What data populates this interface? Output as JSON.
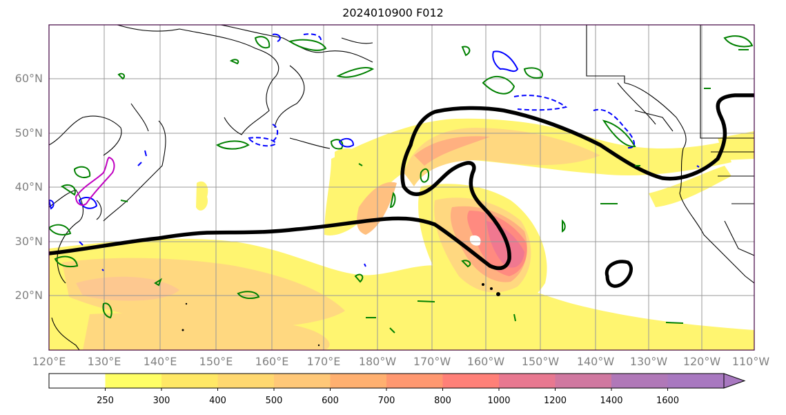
{
  "title": "2024010900 F012",
  "map": {
    "projection": "PlateCarree",
    "lon_range": [
      "120°E",
      "110°W"
    ],
    "lat_range_deg": [
      10,
      70
    ],
    "lat_ticks": [
      "20°N",
      "30°N",
      "40°N",
      "50°N",
      "60°N"
    ],
    "lon_ticks": [
      "120°E",
      "130°E",
      "140°E",
      "150°E",
      "160°E",
      "170°E",
      "180°W",
      "170°W",
      "160°W",
      "150°W",
      "140°W",
      "130°W",
      "120°W",
      "110°W"
    ],
    "gridlines": true,
    "colors": {
      "coastline": "#000000",
      "gridline": "#999999",
      "jet_contour": "#000000",
      "green_contours": "#008000",
      "blue_contours": "#0000ff",
      "magenta_contour": "#c000c0"
    },
    "field": "filled contours (yellow to purple) of integrated vapor transport-like quantity; thick black contour line"
  },
  "colorbar": {
    "tick_labels": [
      "250",
      "300",
      "400",
      "500",
      "600",
      "700",
      "800",
      "1000",
      "1200",
      "1400",
      "1600"
    ],
    "colors": [
      "#ffffff",
      "#ffff66",
      "#ffe866",
      "#ffd870",
      "#ffc878",
      "#ffb070",
      "#ff9870",
      "#ff8078",
      "#e87890",
      "#d078a0",
      "#b078b8",
      "#a878c0"
    ],
    "extend": "max"
  }
}
